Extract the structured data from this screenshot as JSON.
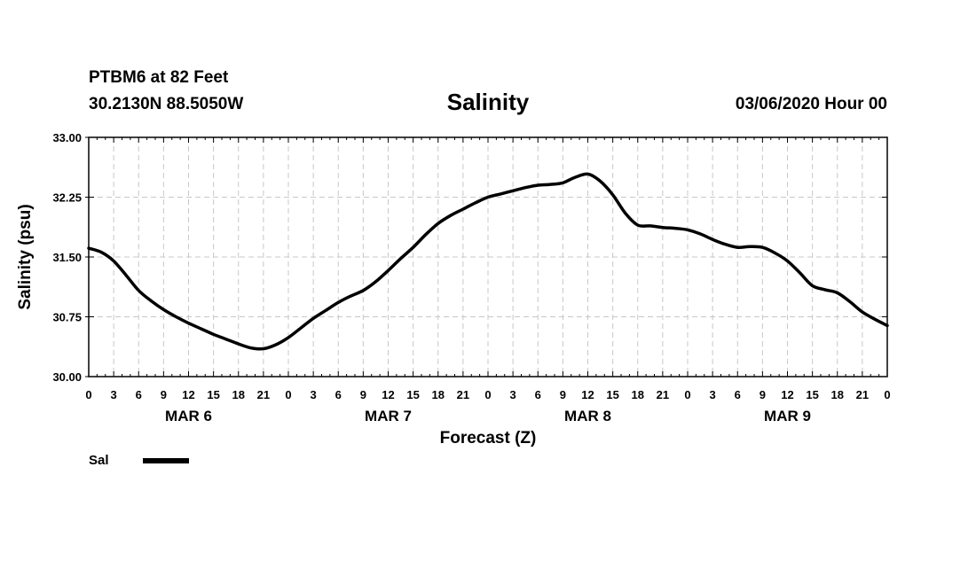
{
  "header": {
    "station": "PTBM6 at 82 Feet",
    "coords": "30.2130N 88.5050W",
    "issued": "03/06/2020 Hour 00"
  },
  "chart_data": {
    "type": "line",
    "title": "Salinity",
    "xlabel": "Forecast (Z)",
    "ylabel": "Salinity (psu)",
    "ylim": [
      30.0,
      33.0
    ],
    "yticks": [
      "30.00",
      "30.75",
      "31.50",
      "32.25",
      "33.00"
    ],
    "xlim": [
      0,
      96
    ],
    "xtick_hours": [
      0,
      3,
      6,
      9,
      12,
      15,
      18,
      21,
      24,
      27,
      30,
      33,
      36,
      39,
      42,
      45,
      48,
      51,
      54,
      57,
      60,
      63,
      66,
      69,
      72,
      75,
      78,
      81,
      84,
      87,
      90,
      93,
      96
    ],
    "xtick_labels": [
      "0",
      "3",
      "6",
      "9",
      "12",
      "15",
      "18",
      "21",
      "0",
      "3",
      "6",
      "9",
      "12",
      "15",
      "18",
      "21",
      "0",
      "3",
      "6",
      "9",
      "12",
      "15",
      "18",
      "21",
      "0",
      "3",
      "6",
      "9",
      "12",
      "15",
      "18",
      "21",
      "0"
    ],
    "day_labels": [
      {
        "hour": 12,
        "label": "MAR 6"
      },
      {
        "hour": 36,
        "label": "MAR 7"
      },
      {
        "hour": 60,
        "label": "MAR 8"
      },
      {
        "hour": 84,
        "label": "MAR 9"
      }
    ],
    "grid": true,
    "legend_position": "bottom-left",
    "series": [
      {
        "name": "Sal",
        "color": "#000000",
        "x": [
          0,
          1.5,
          3,
          4.5,
          6,
          7.5,
          9,
          10.5,
          12,
          13.5,
          15,
          16.5,
          18,
          19.5,
          21,
          22.5,
          24,
          25.5,
          27,
          28.5,
          30,
          31.5,
          33,
          34.5,
          36,
          37.5,
          39,
          40.5,
          42,
          43.5,
          45,
          46.5,
          48,
          49.5,
          51,
          52.5,
          54,
          55.5,
          57,
          58.5,
          60,
          61.5,
          63,
          64.5,
          66,
          67.5,
          69,
          70.5,
          72,
          73.5,
          75,
          76.5,
          78,
          79.5,
          81,
          82.5,
          84,
          85.5,
          87,
          88.5,
          90,
          91.5,
          93,
          94.5,
          96
        ],
        "y": [
          31.61,
          31.56,
          31.45,
          31.27,
          31.08,
          30.95,
          30.84,
          30.75,
          30.67,
          30.6,
          30.53,
          30.47,
          30.41,
          30.36,
          30.35,
          30.4,
          30.49,
          30.61,
          30.73,
          30.83,
          30.93,
          31.01,
          31.08,
          31.19,
          31.33,
          31.48,
          31.62,
          31.78,
          31.92,
          32.02,
          32.1,
          32.18,
          32.25,
          32.29,
          32.33,
          32.37,
          32.4,
          32.41,
          32.43,
          32.5,
          32.54,
          32.45,
          32.28,
          32.05,
          31.9,
          31.89,
          31.87,
          31.86,
          31.84,
          31.79,
          31.72,
          31.66,
          31.62,
          31.63,
          31.62,
          31.55,
          31.45,
          31.3,
          31.14,
          31.09,
          31.05,
          30.94,
          30.81,
          30.72,
          30.64
        ]
      }
    ]
  }
}
